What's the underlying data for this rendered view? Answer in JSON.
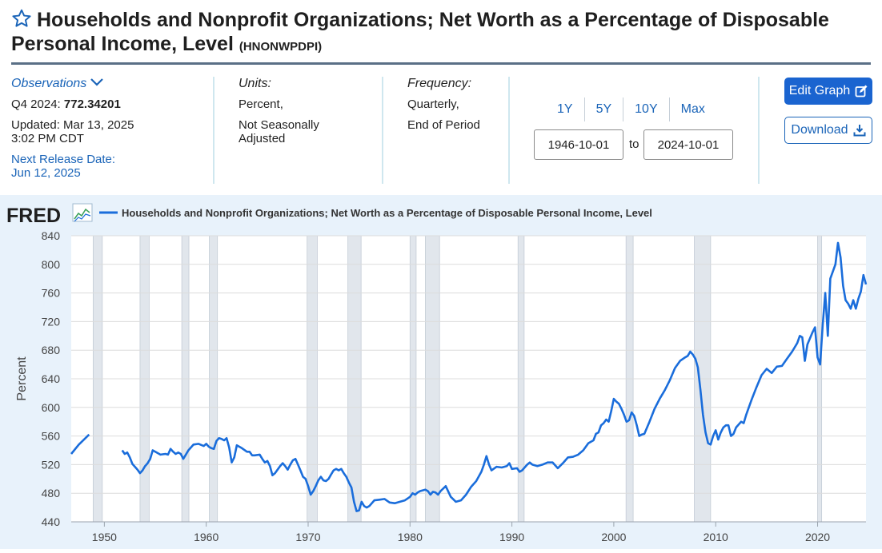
{
  "header": {
    "title": "Households and Nonprofit Organizations; Net Worth as a Percentage of Disposable Personal Income, Level",
    "series_id": "(HNONWPDPI)"
  },
  "observations": {
    "heading": "Observations",
    "latest_label": "Q4 2024:",
    "latest_value": "772.34201",
    "updated_label": "Updated: Mar 13, 2025",
    "updated_time": "3:02 PM CDT",
    "next_release_label": "Next Release Date:",
    "next_release_date": "Jun 12, 2025"
  },
  "units": {
    "heading": "Units:",
    "line1": "Percent,",
    "line2": "Not Seasonally",
    "line3": "Adjusted"
  },
  "frequency": {
    "heading": "Frequency:",
    "line1": "Quarterly,",
    "line2": "End of Period"
  },
  "range": {
    "buttons": [
      "1Y",
      "5Y",
      "10Y",
      "Max"
    ],
    "start": "1946-10-01",
    "to_label": "to",
    "end": "2024-10-01"
  },
  "actions": {
    "edit_label": "Edit Graph",
    "download_label": "Download"
  },
  "colors": {
    "line": "#1a6ddb",
    "recession": "#e1e6ec",
    "accent": "#1a64b8",
    "button": "#1a64d0"
  },
  "chart_data": {
    "type": "line",
    "logo": "FRED",
    "legend": "Households and Nonprofit Organizations; Net Worth as a Percentage of Disposable Personal Income, Level",
    "ylabel": "Percent",
    "ylim": [
      440,
      840
    ],
    "yticks": [
      440,
      480,
      520,
      560,
      600,
      640,
      680,
      720,
      760,
      800,
      840
    ],
    "xlim": [
      1946.75,
      2024.75
    ],
    "xticks": [
      1950,
      1960,
      1970,
      1980,
      1990,
      2000,
      2010,
      2020
    ],
    "recessions": [
      [
        1948.9,
        1949.8
      ],
      [
        1953.5,
        1954.4
      ],
      [
        1957.6,
        1958.3
      ],
      [
        1960.3,
        1961.1
      ],
      [
        1969.9,
        1970.9
      ],
      [
        1973.9,
        1975.2
      ],
      [
        1980.0,
        1980.6
      ],
      [
        1981.5,
        1982.9
      ],
      [
        1990.6,
        1991.2
      ],
      [
        2001.2,
        2001.9
      ],
      [
        2007.9,
        2009.5
      ],
      [
        2020.0,
        2020.4
      ]
    ],
    "segments": [
      [
        [
          1946.75,
          535
        ],
        [
          1947.5,
          548
        ],
        [
          1948.0,
          555
        ],
        [
          1948.5,
          562
        ]
      ],
      [
        [
          1951.75,
          540
        ],
        [
          1952.0,
          535
        ],
        [
          1952.25,
          537
        ],
        [
          1952.5,
          530
        ],
        [
          1952.75,
          521
        ],
        [
          1953.25,
          513
        ],
        [
          1953.5,
          508
        ],
        [
          1953.75,
          512
        ],
        [
          1954.0,
          518
        ],
        [
          1954.25,
          522
        ],
        [
          1954.5,
          528
        ],
        [
          1954.75,
          540
        ],
        [
          1955.0,
          538
        ],
        [
          1955.5,
          534
        ],
        [
          1956.0,
          535
        ],
        [
          1956.25,
          534
        ],
        [
          1956.5,
          542
        ],
        [
          1956.75,
          538
        ],
        [
          1957.0,
          535
        ],
        [
          1957.25,
          537
        ],
        [
          1957.5,
          535
        ],
        [
          1957.75,
          528
        ],
        [
          1958.0,
          534
        ],
        [
          1958.25,
          540
        ],
        [
          1958.75,
          548
        ],
        [
          1959.25,
          549
        ],
        [
          1959.75,
          546
        ],
        [
          1960.0,
          549
        ],
        [
          1960.25,
          545
        ],
        [
          1960.5,
          543
        ],
        [
          1960.75,
          542
        ],
        [
          1961.0,
          553
        ],
        [
          1961.25,
          557
        ],
        [
          1961.5,
          556
        ],
        [
          1961.75,
          554
        ],
        [
          1962.0,
          557
        ],
        [
          1962.25,
          544
        ],
        [
          1962.5,
          523
        ],
        [
          1962.75,
          530
        ],
        [
          1963.0,
          547
        ],
        [
          1963.5,
          543
        ],
        [
          1964.0,
          538
        ],
        [
          1964.25,
          538
        ],
        [
          1964.5,
          533
        ],
        [
          1964.75,
          533
        ],
        [
          1965.25,
          534
        ],
        [
          1965.5,
          528
        ],
        [
          1965.75,
          523
        ],
        [
          1966.0,
          525
        ],
        [
          1966.25,
          518
        ],
        [
          1966.5,
          505
        ],
        [
          1966.75,
          508
        ],
        [
          1967.25,
          518
        ],
        [
          1967.5,
          522
        ],
        [
          1967.75,
          518
        ],
        [
          1968.0,
          513
        ],
        [
          1968.25,
          520
        ],
        [
          1968.5,
          526
        ],
        [
          1968.75,
          528
        ],
        [
          1969.0,
          520
        ],
        [
          1969.25,
          512
        ],
        [
          1969.5,
          503
        ],
        [
          1969.75,
          500
        ],
        [
          1970.0,
          490
        ],
        [
          1970.25,
          478
        ],
        [
          1970.5,
          483
        ],
        [
          1970.75,
          490
        ],
        [
          1971.0,
          498
        ],
        [
          1971.25,
          503
        ],
        [
          1971.5,
          498
        ],
        [
          1971.75,
          497
        ],
        [
          1972.0,
          500
        ],
        [
          1972.25,
          506
        ],
        [
          1972.5,
          512
        ],
        [
          1972.75,
          514
        ],
        [
          1973.0,
          512
        ],
        [
          1973.25,
          514
        ],
        [
          1973.5,
          508
        ],
        [
          1973.75,
          503
        ],
        [
          1974.0,
          495
        ],
        [
          1974.25,
          488
        ],
        [
          1974.5,
          468
        ],
        [
          1974.75,
          455
        ],
        [
          1975.0,
          456
        ],
        [
          1975.25,
          468
        ],
        [
          1975.5,
          462
        ],
        [
          1975.75,
          460
        ],
        [
          1976.0,
          462
        ],
        [
          1976.5,
          470
        ],
        [
          1977.0,
          471
        ],
        [
          1977.5,
          472
        ],
        [
          1978.0,
          467
        ],
        [
          1978.5,
          466
        ],
        [
          1979.0,
          468
        ],
        [
          1979.5,
          470
        ],
        [
          1980.0,
          475
        ],
        [
          1980.25,
          480
        ],
        [
          1980.5,
          478
        ],
        [
          1980.75,
          481
        ],
        [
          1981.0,
          483
        ],
        [
          1981.5,
          485
        ],
        [
          1981.75,
          483
        ],
        [
          1982.0,
          478
        ],
        [
          1982.25,
          482
        ],
        [
          1982.5,
          481
        ],
        [
          1982.75,
          478
        ],
        [
          1983.0,
          483
        ],
        [
          1983.5,
          490
        ],
        [
          1984.0,
          475
        ],
        [
          1984.5,
          468
        ],
        [
          1985.0,
          470
        ],
        [
          1985.5,
          478
        ],
        [
          1986.0,
          489
        ],
        [
          1986.5,
          497
        ],
        [
          1987.0,
          510
        ],
        [
          1987.25,
          520
        ],
        [
          1987.5,
          532
        ],
        [
          1987.75,
          520
        ],
        [
          1988.0,
          512
        ],
        [
          1988.5,
          517
        ],
        [
          1989.0,
          516
        ],
        [
          1989.5,
          518
        ],
        [
          1989.75,
          522
        ],
        [
          1990.0,
          514
        ],
        [
          1990.5,
          515
        ],
        [
          1990.75,
          510
        ],
        [
          1991.0,
          512
        ],
        [
          1991.5,
          520
        ],
        [
          1991.75,
          523
        ],
        [
          1992.0,
          520
        ],
        [
          1992.5,
          518
        ],
        [
          1993.0,
          520
        ],
        [
          1993.5,
          523
        ],
        [
          1994.0,
          523
        ],
        [
          1994.5,
          515
        ],
        [
          1995.0,
          522
        ],
        [
          1995.5,
          530
        ],
        [
          1996.0,
          531
        ],
        [
          1996.5,
          534
        ],
        [
          1997.0,
          540
        ],
        [
          1997.5,
          550
        ],
        [
          1998.0,
          554
        ],
        [
          1998.25,
          563
        ],
        [
          1998.5,
          565
        ],
        [
          1998.75,
          575
        ],
        [
          1999.0,
          578
        ],
        [
          1999.25,
          583
        ],
        [
          1999.5,
          580
        ],
        [
          1999.75,
          595
        ],
        [
          2000.0,
          612
        ],
        [
          2000.25,
          608
        ],
        [
          2000.5,
          605
        ],
        [
          2000.75,
          598
        ],
        [
          2001.0,
          590
        ],
        [
          2001.25,
          580
        ],
        [
          2001.5,
          582
        ],
        [
          2001.75,
          593
        ],
        [
          2002.0,
          588
        ],
        [
          2002.25,
          575
        ],
        [
          2002.5,
          560
        ],
        [
          2002.75,
          562
        ],
        [
          2003.0,
          563
        ],
        [
          2003.5,
          580
        ],
        [
          2004.0,
          598
        ],
        [
          2004.5,
          612
        ],
        [
          2005.0,
          624
        ],
        [
          2005.5,
          638
        ],
        [
          2006.0,
          655
        ],
        [
          2006.5,
          665
        ],
        [
          2007.0,
          670
        ],
        [
          2007.25,
          672
        ],
        [
          2007.5,
          678
        ],
        [
          2007.75,
          674
        ],
        [
          2008.0,
          668
        ],
        [
          2008.25,
          656
        ],
        [
          2008.5,
          625
        ],
        [
          2008.75,
          590
        ],
        [
          2009.0,
          565
        ],
        [
          2009.25,
          550
        ],
        [
          2009.5,
          548
        ],
        [
          2009.75,
          560
        ],
        [
          2010.0,
          568
        ],
        [
          2010.25,
          555
        ],
        [
          2010.5,
          565
        ],
        [
          2010.75,
          572
        ],
        [
          2011.0,
          575
        ],
        [
          2011.25,
          575
        ],
        [
          2011.5,
          560
        ],
        [
          2011.75,
          563
        ],
        [
          2012.0,
          572
        ],
        [
          2012.5,
          580
        ],
        [
          2012.75,
          578
        ],
        [
          2013.0,
          590
        ],
        [
          2013.5,
          610
        ],
        [
          2014.0,
          628
        ],
        [
          2014.5,
          645
        ],
        [
          2015.0,
          654
        ],
        [
          2015.5,
          648
        ],
        [
          2016.0,
          657
        ],
        [
          2016.5,
          658
        ],
        [
          2017.0,
          668
        ],
        [
          2017.5,
          678
        ],
        [
          2018.0,
          690
        ],
        [
          2018.25,
          700
        ],
        [
          2018.5,
          698
        ],
        [
          2018.75,
          665
        ],
        [
          2019.0,
          688
        ],
        [
          2019.5,
          705
        ],
        [
          2019.75,
          712
        ],
        [
          2020.0,
          670
        ],
        [
          2020.25,
          660
        ],
        [
          2020.5,
          715
        ],
        [
          2020.75,
          760
        ],
        [
          2021.0,
          700
        ],
        [
          2021.25,
          780
        ],
        [
          2021.75,
          800
        ],
        [
          2022.0,
          830
        ],
        [
          2022.25,
          810
        ],
        [
          2022.5,
          770
        ],
        [
          2022.75,
          750
        ],
        [
          2023.0,
          745
        ],
        [
          2023.25,
          738
        ],
        [
          2023.5,
          750
        ],
        [
          2023.75,
          738
        ],
        [
          2024.0,
          752
        ],
        [
          2024.25,
          762
        ],
        [
          2024.5,
          785
        ],
        [
          2024.75,
          772
        ]
      ]
    ]
  }
}
